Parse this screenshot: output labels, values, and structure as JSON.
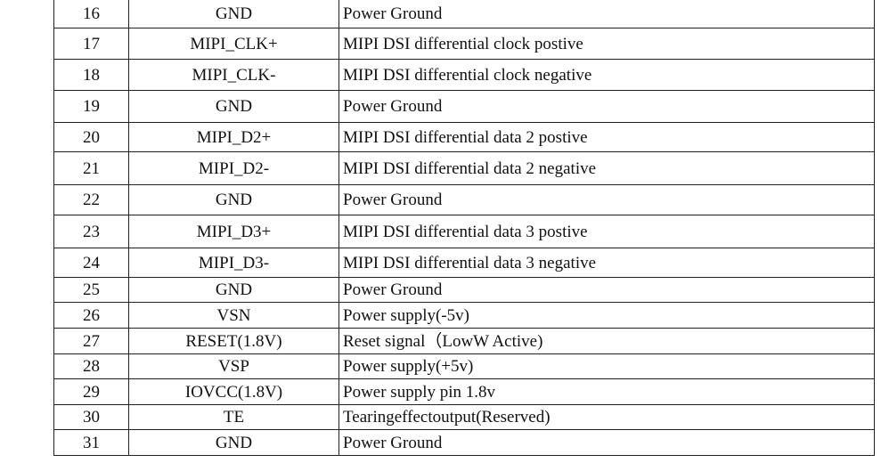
{
  "pin_table": {
    "rows": [
      {
        "pin": "16",
        "symbol": "GND",
        "description": "Power Ground"
      },
      {
        "pin": "17",
        "symbol": "MIPI_CLK+",
        "description": "MIPI DSI differential clock postive"
      },
      {
        "pin": "18",
        "symbol": "MIPI_CLK-",
        "description": "MIPI DSI differential clock negative"
      },
      {
        "pin": "19",
        "symbol": "GND",
        "description": "Power Ground"
      },
      {
        "pin": "20",
        "symbol": "MIPI_D2+",
        "description": "MIPI DSI differential data 2 postive"
      },
      {
        "pin": "21",
        "symbol": "MIPI_D2-",
        "description": "MIPI DSI differential data 2 negative"
      },
      {
        "pin": "22",
        "symbol": "GND",
        "description": "Power Ground"
      },
      {
        "pin": "23",
        "symbol": "MIPI_D3+",
        "description": "MIPI DSI differential data 3 postive"
      },
      {
        "pin": "24",
        "symbol": "MIPI_D3-",
        "description": "MIPI DSI differential data 3 negative"
      },
      {
        "pin": "25",
        "symbol": "GND",
        "description": "Power Ground"
      },
      {
        "pin": "26",
        "symbol": "VSN",
        "description": "Power supply(-5v)"
      },
      {
        "pin": "27",
        "symbol": "RESET(1.8V)",
        "description": "Reset signal（LowW Active)"
      },
      {
        "pin": "28",
        "symbol": "VSP",
        "description": "Power supply(+5v)"
      },
      {
        "pin": "29",
        "symbol": "IOVCC(1.8V)",
        "description": "Power supply pin 1.8v"
      },
      {
        "pin": "30",
        "symbol": "TE",
        "description": "Tearingeffectoutput(Reserved)"
      },
      {
        "pin": "31",
        "symbol": "GND",
        "description": "Power Ground"
      }
    ]
  }
}
